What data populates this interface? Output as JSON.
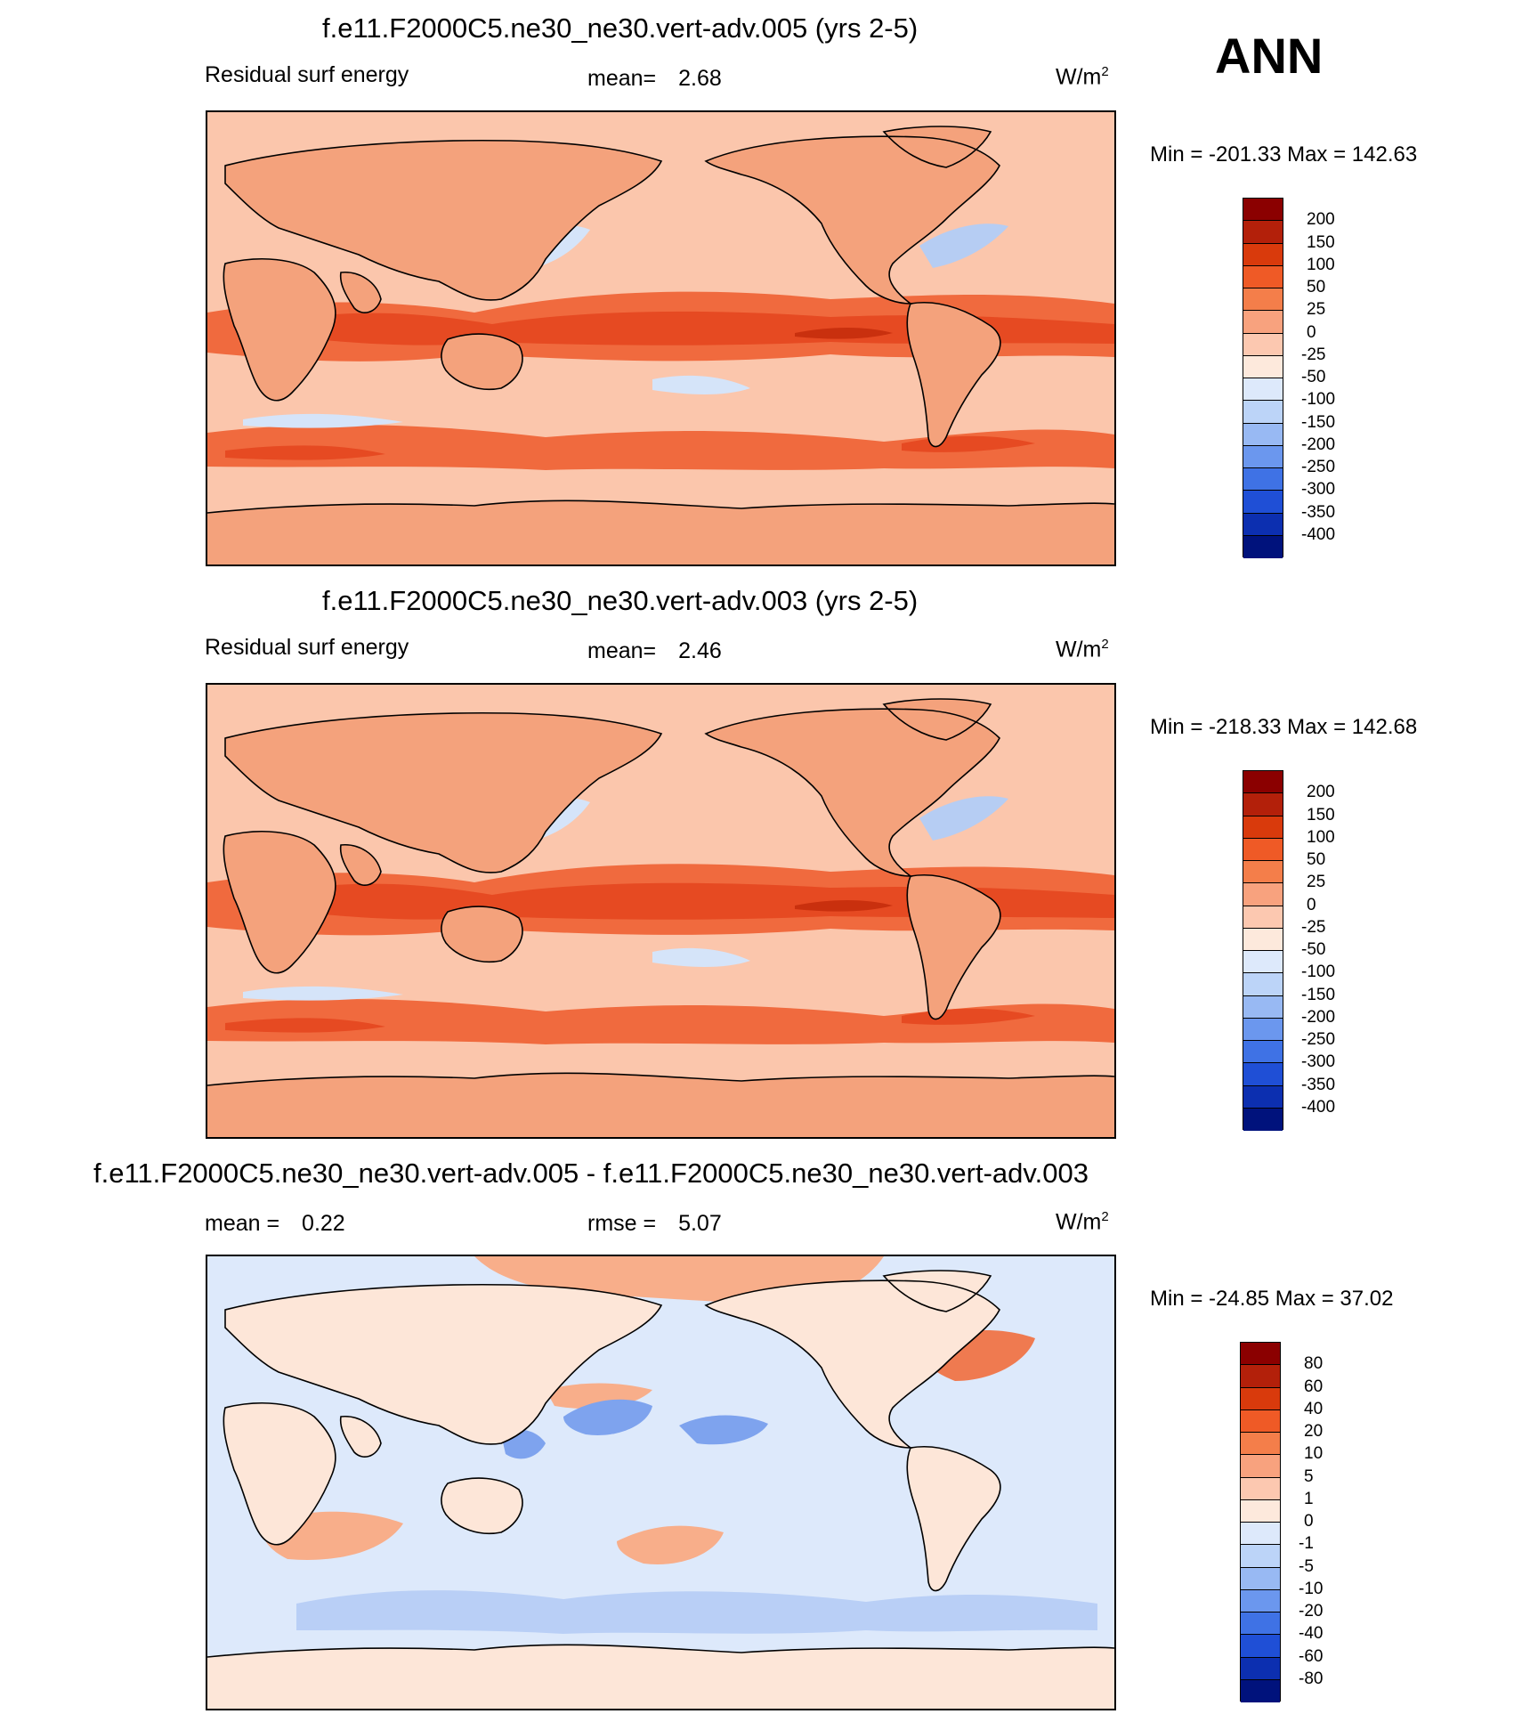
{
  "season": "ANN",
  "panels": [
    {
      "title": "f.e11.F2000C5.ne30_ne30.vert-adv.005 (yrs 2-5)",
      "left_label": "Residual surf energy",
      "stat1_label": "mean=",
      "stat1_value": "2.68",
      "stat2_label": "",
      "stat2_value": "",
      "units": "W/m",
      "units_sup": "2",
      "minmax": "Min = -201.33 Max = 142.63",
      "colorbar": {
        "labels": [
          "200",
          "150",
          "100",
          "50",
          "25",
          "0",
          "-25",
          "-50",
          "-100",
          "-150",
          "-200",
          "-250",
          "-300",
          "-350",
          "-400"
        ],
        "colors": [
          "#8b0000",
          "#b3200a",
          "#d93a0c",
          "#ef5a26",
          "#f47e4a",
          "#f8a27e",
          "#fcc8b0",
          "#fde9dc",
          "#dde9fb",
          "#bcd4f8",
          "#98b9f3",
          "#6b97ee",
          "#3f72e5",
          "#1f4fd6",
          "#0c2fb0",
          "#00127c"
        ]
      },
      "map_colors": {
        "land": "#f4a27c",
        "ocean": "#fbc6ac",
        "hot": "#f06a3e",
        "hotter": "#e64a22",
        "core": "#c9300e",
        "cool": "#d5e4f9",
        "cooler": "#b6cdf3",
        "coast": "#000000"
      }
    },
    {
      "title": "f.e11.F2000C5.ne30_ne30.vert-adv.003 (yrs 2-5)",
      "left_label": "Residual surf energy",
      "stat1_label": "mean=",
      "stat1_value": "2.46",
      "stat2_label": "",
      "stat2_value": "",
      "units": "W/m",
      "units_sup": "2",
      "minmax": "Min = -218.33 Max = 142.68",
      "colorbar": {
        "labels": [
          "200",
          "150",
          "100",
          "50",
          "25",
          "0",
          "-25",
          "-50",
          "-100",
          "-150",
          "-200",
          "-250",
          "-300",
          "-350",
          "-400"
        ],
        "colors": [
          "#8b0000",
          "#b3200a",
          "#d93a0c",
          "#ef5a26",
          "#f47e4a",
          "#f8a27e",
          "#fcc8b0",
          "#fde9dc",
          "#dde9fb",
          "#bcd4f8",
          "#98b9f3",
          "#6b97ee",
          "#3f72e5",
          "#1f4fd6",
          "#0c2fb0",
          "#00127c"
        ]
      },
      "map_colors": {
        "land": "#f4a27c",
        "ocean": "#fbc6ac",
        "hot": "#f06a3e",
        "hotter": "#e64a22",
        "core": "#c9300e",
        "cool": "#d5e4f9",
        "cooler": "#b6cdf3",
        "coast": "#000000"
      }
    },
    {
      "title": "f.e11.F2000C5.ne30_ne30.vert-adv.005 - f.e11.F2000C5.ne30_ne30.vert-adv.003",
      "left_label": "mean =",
      "left_value": "0.22",
      "stat1_label": "rmse =",
      "stat1_value": "5.07",
      "stat2_label": "",
      "stat2_value": "",
      "units": "W/m",
      "units_sup": "2",
      "minmax": "Min = -24.85 Max =  37.02",
      "colorbar": {
        "labels": [
          "80",
          "60",
          "40",
          "20",
          "10",
          "5",
          "1",
          "0",
          "-1",
          "-5",
          "-10",
          "-20",
          "-40",
          "-60",
          "-80"
        ],
        "colors": [
          "#8b0000",
          "#b3200a",
          "#d93a0c",
          "#ef5a26",
          "#f47e4a",
          "#f8a27e",
          "#fcc8b0",
          "#fde9dc",
          "#dde9fb",
          "#bcd4f8",
          "#98b9f3",
          "#6b97ee",
          "#3f72e5",
          "#1f4fd6",
          "#0c2fb0",
          "#00127c"
        ]
      },
      "map_colors": {
        "land": "#fde6d8",
        "ocean": "#dde9fb",
        "hot": "#f8ae8a",
        "hotter": "#ef7a50",
        "core": "#e0552c",
        "cool": "#b9cff6",
        "cooler": "#7ea3ee",
        "coast": "#000000"
      }
    }
  ]
}
